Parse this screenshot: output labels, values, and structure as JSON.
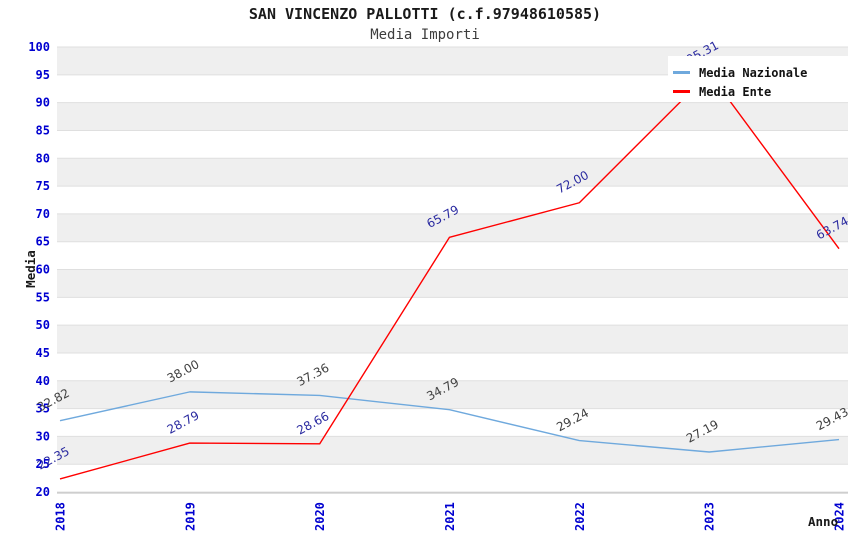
{
  "title": "SAN VINCENZO PALLOTTI (c.f.97948610585)",
  "subtitle": "Media Importi",
  "axes": {
    "y_title": "Media",
    "x_title": "Anno"
  },
  "legend": {
    "position": "top-right",
    "items": [
      {
        "label": "Media Nazionale",
        "color": "#6fa9dd"
      },
      {
        "label": "Media Ente",
        "color": "#ff0000"
      }
    ]
  },
  "chart_data": {
    "type": "line",
    "title": "SAN VINCENZO PALLOTTI (c.f.97948610585)",
    "subtitle": "Media Importi",
    "xlabel": "Anno",
    "ylabel": "Media",
    "categories": [
      "2018",
      "2019",
      "2020",
      "2021",
      "2022",
      "2023",
      "2024"
    ],
    "series": [
      {
        "name": "Media Nazionale",
        "color": "#6fa9dd",
        "label_color": "#404040",
        "values": [
          32.82,
          38.0,
          37.36,
          34.79,
          29.24,
          27.19,
          29.43
        ],
        "labels": [
          "32.82",
          "38.00",
          "37.36",
          "34.79",
          "29.24",
          "27.19",
          "29.43"
        ]
      },
      {
        "name": "Media Ente",
        "color": "#ff0000",
        "label_color": "#2a2aa0",
        "values": [
          22.35,
          28.79,
          28.66,
          65.79,
          72.0,
          95.31,
          63.74
        ],
        "labels": [
          "22.35",
          "28.79",
          "28.66",
          "65.79",
          "72.00",
          "95.31",
          "63.74"
        ]
      }
    ],
    "ylim": [
      20,
      100
    ],
    "ytick_step": 5,
    "ytick_labels": [
      "100",
      "95",
      "90",
      "85",
      "80",
      "75",
      "70",
      "65",
      "60",
      "55",
      "50",
      "45",
      "40",
      "35",
      "30",
      "25",
      "20"
    ],
    "grid": "horizontal-bands",
    "legend_position": "top-right",
    "tick_color": "#0000d0",
    "band_color": "#efefef",
    "gridline_color": "#dfdfdf",
    "axisline_color": "#bdbdbd"
  }
}
